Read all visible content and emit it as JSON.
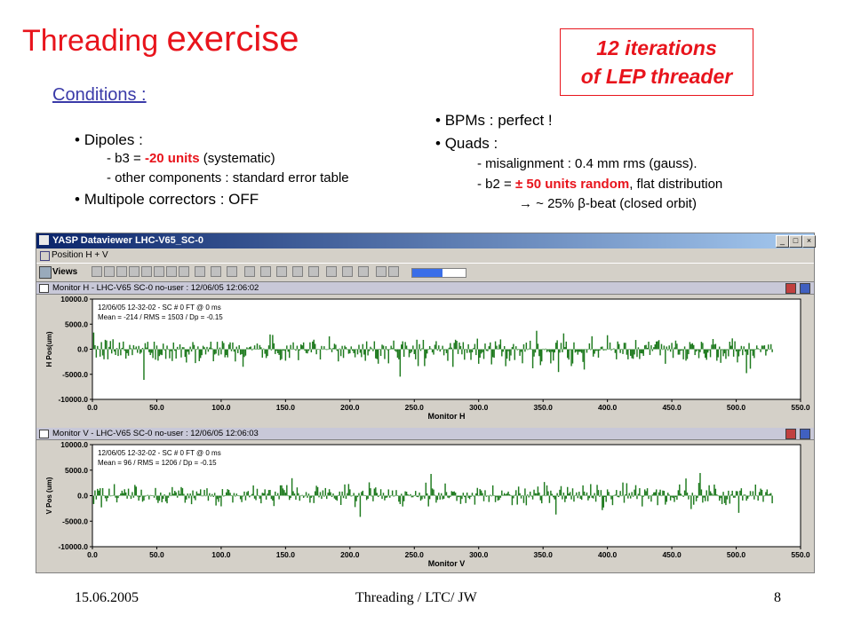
{
  "slide": {
    "title_part1": "Threading ",
    "title_part2": "exercise",
    "box_line1": "12 iterations",
    "box_line2": "of LEP threader",
    "conditions": "Conditions :",
    "dipoles": "Dipoles :",
    "b3_prefix": "b3 = ",
    "b3_value": "-20 units",
    "b3_suffix": " (systematic)",
    "other_components": "other components : standard error table",
    "multipole": "Multipole correctors : OFF",
    "bpms": "BPMs : perfect !",
    "quads": "Quads   :",
    "misalignment": "misalignment : 0.4 mm rms (gauss).",
    "b2_prefix": "b2 = ",
    "b2_value": "± 50 units random",
    "b2_suffix": ", flat distribution",
    "beta_beat": " ~ 25% β-beat (closed orbit)",
    "bullet": "•",
    "dash": "-",
    "arrow": "→"
  },
  "footer": {
    "date": "15.06.2005",
    "center": "Threading / LTC/ JW",
    "page": "8"
  },
  "window": {
    "title": "YASP Dataviewer LHC-V65_SC-0",
    "menu_label": "Position H + V",
    "views_label": "Views",
    "min_glyph": "_",
    "max_glyph": "□",
    "close_glyph": "×"
  },
  "panels": [
    {
      "header": "Monitor H - LHC-V65 SC-0 no-user : 12/06/05 12:06:02",
      "info_line1": "12/06/05 12-32-02 - SC # 0 FT @ 0 ms",
      "info_line2": "Mean =    -214 / RMS =    1503 / Dp =  -0.15",
      "ylabel": "H Pos(um)",
      "xlabel": "Monitor H"
    },
    {
      "header": "Monitor V - LHC-V65 SC-0 no-user : 12/06/05 12:06:03",
      "info_line1": "12/06/05 12-32-02 - SC # 0 FT @ 0 ms",
      "info_line2": "Mean =      96 / RMS =    1206 / Dp =  -0.15",
      "ylabel": "V Pos (um)",
      "xlabel": "Monitor V"
    }
  ],
  "chart_data": [
    {
      "type": "bar",
      "xlabel": "Monitor H",
      "ylabel": "H Pos(um)",
      "xlim": [
        0,
        550
      ],
      "ylim": [
        -10000,
        10000
      ],
      "x_ticks": [
        "0.0",
        "50.0",
        "100.0",
        "150.0",
        "200.0",
        "250.0",
        "300.0",
        "350.0",
        "400.0",
        "450.0",
        "500.0",
        "550.0"
      ],
      "y_ticks": [
        "10000.0",
        "5000.0",
        "0.0",
        "-5000.0",
        "-10000.0"
      ],
      "bar_color": "#1e7a1e",
      "n_monitors": 528,
      "mean": -214,
      "rms": 1503
    },
    {
      "type": "bar",
      "xlabel": "Monitor V",
      "ylabel": "V Pos (um)",
      "xlim": [
        0,
        550
      ],
      "ylim": [
        -10000,
        10000
      ],
      "x_ticks": [
        "0.0",
        "50.0",
        "100.0",
        "150.0",
        "200.0",
        "250.0",
        "300.0",
        "350.0",
        "400.0",
        "450.0",
        "500.0",
        "550.0"
      ],
      "y_ticks": [
        "10000.0",
        "5000.0",
        "0.0",
        "-5000.0",
        "-10000.0"
      ],
      "bar_color": "#1e7a1e",
      "n_monitors": 528,
      "mean": 96,
      "rms": 1206
    }
  ]
}
